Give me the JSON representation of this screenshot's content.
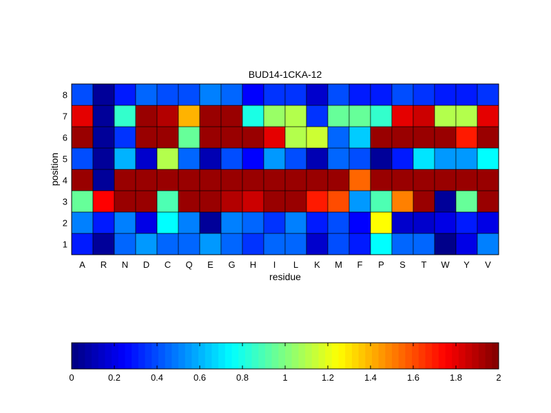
{
  "chart_data": {
    "type": "heatmap",
    "title": "BUD14-1CKA-12",
    "xlabel": "residue",
    "ylabel": "position",
    "x_categories": [
      "A",
      "R",
      "N",
      "D",
      "C",
      "Q",
      "E",
      "G",
      "H",
      "I",
      "L",
      "K",
      "M",
      "F",
      "P",
      "S",
      "T",
      "W",
      "Y",
      "V"
    ],
    "y_categories": [
      "1",
      "2",
      "3",
      "4",
      "5",
      "6",
      "7",
      "8"
    ],
    "colormap": "jet",
    "clim": [
      0,
      2
    ],
    "colorbar": {
      "ticks": [
        0,
        0.2,
        0.4,
        0.6,
        0.8,
        1,
        1.2,
        1.4,
        1.6,
        1.8,
        2
      ],
      "tick_labels": [
        "0",
        "0.2",
        "0.4",
        "0.6",
        "0.8",
        "1",
        "1.2",
        "1.4",
        "1.6",
        "1.8",
        "2"
      ],
      "placement": "bottom"
    },
    "grid": false,
    "legend": "none",
    "values": [
      [
        0.3,
        0.05,
        0.45,
        0.55,
        0.45,
        0.45,
        0.55,
        0.45,
        0.35,
        0.45,
        0.45,
        0.15,
        0.4,
        0.3,
        0.75,
        0.45,
        0.45,
        0.02,
        0.2,
        0.5
      ],
      [
        0.5,
        0.3,
        0.5,
        0.2,
        0.75,
        0.5,
        0.05,
        0.5,
        0.45,
        0.35,
        0.5,
        0.3,
        0.4,
        0.25,
        1.25,
        0.15,
        0.15,
        0.2,
        0.3,
        0.2
      ],
      [
        0.95,
        1.75,
        1.95,
        1.95,
        0.9,
        1.95,
        1.95,
        1.9,
        1.85,
        1.95,
        1.95,
        1.7,
        1.6,
        0.55,
        0.9,
        1.5,
        1.95,
        0.05,
        0.95,
        1.95
      ],
      [
        1.95,
        0.05,
        1.95,
        1.95,
        1.95,
        1.95,
        1.95,
        1.95,
        1.95,
        1.95,
        1.95,
        1.95,
        1.95,
        1.55,
        1.95,
        1.95,
        1.95,
        1.95,
        1.95,
        1.95
      ],
      [
        0.4,
        0.05,
        0.6,
        0.15,
        1.1,
        0.45,
        0.1,
        0.4,
        0.25,
        0.55,
        0.4,
        0.1,
        0.45,
        0.4,
        0.05,
        0.3,
        0.7,
        0.55,
        0.55,
        0.75
      ],
      [
        1.95,
        0.05,
        0.35,
        1.95,
        1.95,
        0.95,
        1.95,
        1.95,
        1.95,
        1.8,
        1.1,
        1.15,
        0.45,
        0.65,
        1.95,
        1.95,
        1.95,
        1.95,
        1.7,
        1.95
      ],
      [
        1.8,
        0.05,
        0.85,
        1.95,
        1.9,
        1.4,
        1.95,
        1.95,
        0.8,
        1.05,
        1.1,
        0.35,
        0.95,
        0.95,
        0.85,
        1.8,
        1.85,
        1.1,
        1.1,
        1.8
      ],
      [
        0.4,
        0.05,
        0.3,
        0.45,
        0.4,
        0.4,
        0.5,
        0.45,
        0.25,
        0.35,
        0.35,
        0.15,
        0.4,
        0.3,
        0.3,
        0.4,
        0.35,
        0.3,
        0.3,
        0.35
      ]
    ]
  }
}
